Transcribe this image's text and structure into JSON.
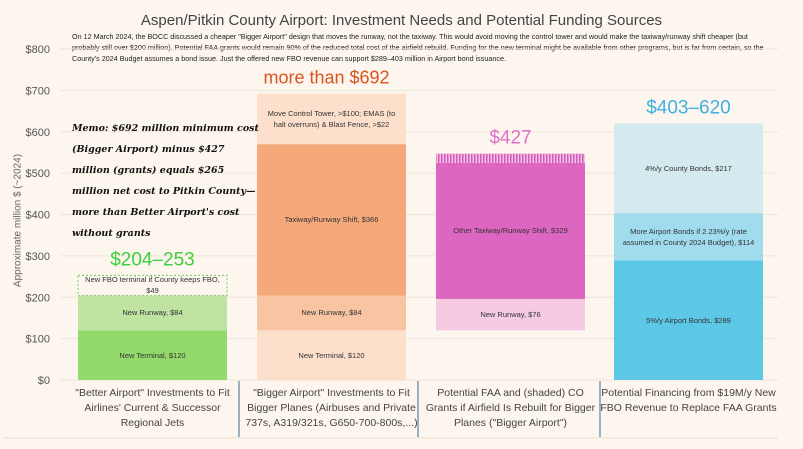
{
  "chart_data": {
    "type": "bar",
    "title": "Aspen/Pitkin County Airport: Investment Needs and Potential Funding Sources",
    "annotation": "On 12 March 2024, the BOCC discussed a cheaper \"Bigger Airport\" design that moves the runway, not the taxiway. This would avoid moving the control tower and would make the taxiway/runway shift cheaper  (but probably still over $200 million). Potential FAA grants would remain 90% of the reduced total cost of the airfield rebuild. Funding for the new terminal might be available from other programs, but is far from certain, so the County's 2024 Budget assumes a bond issue. Just the offered new FBO revenue can support $289–403 million in Airport bond issuance.",
    "memo": "Memo: $692 million minimum cost (Bigger Airport) minus $427 million (grants) equals $265 million net cost to Pitkin County—more than Better Airport's cost without grants",
    "ylabel": "Approximate million $ (~2024)",
    "ylim": [
      0,
      800
    ],
    "yticks": [
      "$0",
      "$100",
      "$200",
      "$300",
      "$400",
      "$500",
      "$600",
      "$700",
      "$800"
    ],
    "grid": true,
    "stacked": true,
    "categories": [
      {
        "label": "\"Better Airport\" Investments to Fit Airlines' Current & Successor Regional Jets",
        "total_label": "$204–253",
        "total_color": "#3fcf3f",
        "base": 0,
        "segments": [
          {
            "label": "New Terminal, $120",
            "value": 120,
            "color": "#93d96b"
          },
          {
            "label": "New Runway, $84",
            "value": 84,
            "color": "#bfe3a0"
          },
          {
            "label": "New FBO terminal  if County keeps FBO, $49",
            "value": 49,
            "color": "#fdf6ef",
            "dashed": true
          }
        ]
      },
      {
        "label": "\"Bigger Airport\"  Investments to Fit Bigger Planes (Airbuses and Private 737s, A319/321s, G650-700-800s,...)",
        "total_label": "more than $692",
        "total_color": "#d9541e",
        "base": 0,
        "segments": [
          {
            "label": "New Terminal, $120",
            "value": 120,
            "color": "#fde0cc"
          },
          {
            "label": "New Runway, $84",
            "value": 84,
            "color": "#f9c4a4"
          },
          {
            "label": "Taxiway/Runway Shift, $366",
            "value": 366,
            "color": "#f5a97b"
          },
          {
            "label": "Move Control Tower, >$100; EMAS (to halt overruns) & Blast Fence, >$22",
            "value": 122,
            "color": "#fde0cc"
          }
        ]
      },
      {
        "label": "Potential FAA and (shaded) CO Grants if Airfield Is Rebuilt for Bigger Planes (\"Bigger Airport\")",
        "total_label": "$427",
        "total_color": "#e070c8",
        "base": 120,
        "segments": [
          {
            "label": "New Runway, $76",
            "value": 76,
            "color": "#f6cae3"
          },
          {
            "label": "Other Taxiway/Runway Shift, $329",
            "value": 329,
            "color": "#dd66c0"
          },
          {
            "label": "",
            "value": 22,
            "color": "#e58fd2",
            "hatched": true
          }
        ]
      },
      {
        "label": "Potential Financing from $19M/y New FBO Revenue to Replace FAA Grants",
        "total_label": "$403–620",
        "total_color": "#3fb0e0",
        "base": 0,
        "segments": [
          {
            "label": "5%/y Airport Bonds, $289",
            "value": 289,
            "color": "#5dc8e6"
          },
          {
            "label": "More Airport Bonds if 2.23%/y (rate assumed in County 2024 Budget), $114",
            "value": 114,
            "color": "#a0dcee"
          },
          {
            "label": "4%/y County Bonds, $217",
            "value": 217,
            "color": "#d4eaee"
          }
        ]
      }
    ]
  }
}
